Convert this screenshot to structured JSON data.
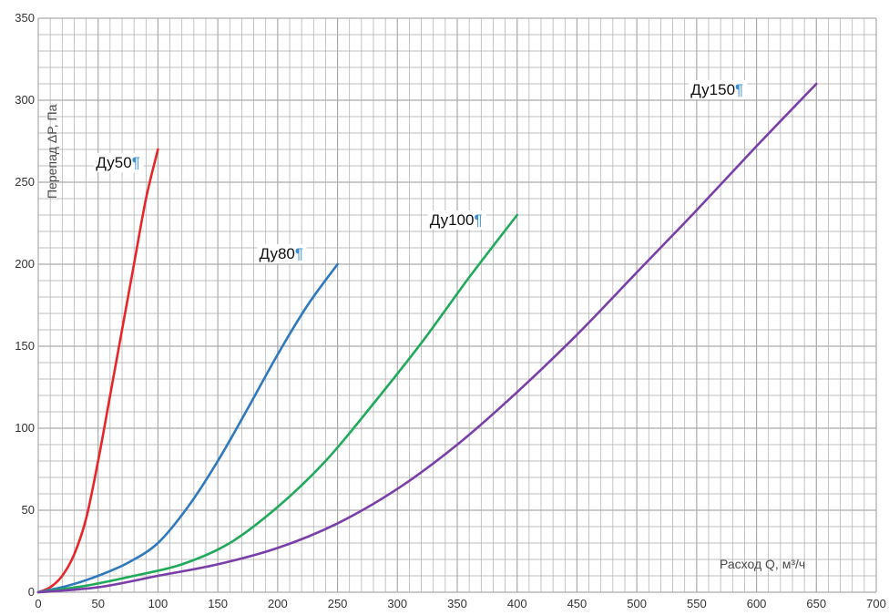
{
  "chart_data": {
    "type": "line",
    "title": "",
    "xlabel": "Расход Q, м³/ч",
    "ylabel": "Перепад ΔP, Па",
    "xlim": [
      0,
      700
    ],
    "ylim": [
      0,
      350
    ],
    "x_major_ticks": [
      0,
      50,
      100,
      150,
      200,
      250,
      300,
      350,
      400,
      450,
      500,
      550,
      600,
      650,
      700
    ],
    "y_major_ticks": [
      0,
      50,
      100,
      150,
      200,
      250,
      300,
      350
    ],
    "x_minor_step": 10,
    "y_minor_step": 10,
    "grid": true,
    "legend": "none",
    "series": [
      {
        "name": "Ду50",
        "color": "#e8262a",
        "x": [
          0,
          10,
          20,
          30,
          40,
          50,
          60,
          70,
          80,
          90,
          100
        ],
        "y": [
          0,
          3,
          10,
          23,
          45,
          80,
          120,
          160,
          200,
          240,
          270
        ]
      },
      {
        "name": "Ду80",
        "color": "#2f79bd",
        "x": [
          0,
          25,
          50,
          75,
          100,
          125,
          150,
          175,
          200,
          225,
          250
        ],
        "y": [
          0,
          4,
          10,
          18,
          30,
          52,
          80,
          112,
          145,
          175,
          200
        ]
      },
      {
        "name": "Ду100",
        "color": "#1faa5a",
        "x": [
          0,
          40,
          80,
          120,
          160,
          200,
          240,
          280,
          320,
          360,
          400
        ],
        "y": [
          0,
          4,
          10,
          17,
          30,
          52,
          80,
          115,
          152,
          192,
          230
        ]
      },
      {
        "name": "Ду150",
        "color": "#7a3ea8",
        "x": [
          0,
          50,
          100,
          150,
          200,
          250,
          300,
          350,
          400,
          450,
          500,
          550,
          600,
          650
        ],
        "y": [
          0,
          3,
          10,
          17,
          27,
          42,
          63,
          90,
          122,
          157,
          195,
          233,
          272,
          310
        ]
      }
    ],
    "annotations": [
      {
        "text": "Ду50",
        "series": "Ду50"
      },
      {
        "text": "Ду80",
        "series": "Ду80"
      },
      {
        "text": "Ду100",
        "series": "Ду100"
      },
      {
        "text": "Ду150",
        "series": "Ду150"
      }
    ],
    "pilcrow_mark": "¶",
    "pilcrow_color": "#3a8fd6",
    "grid_color": "#aaaaaa"
  }
}
